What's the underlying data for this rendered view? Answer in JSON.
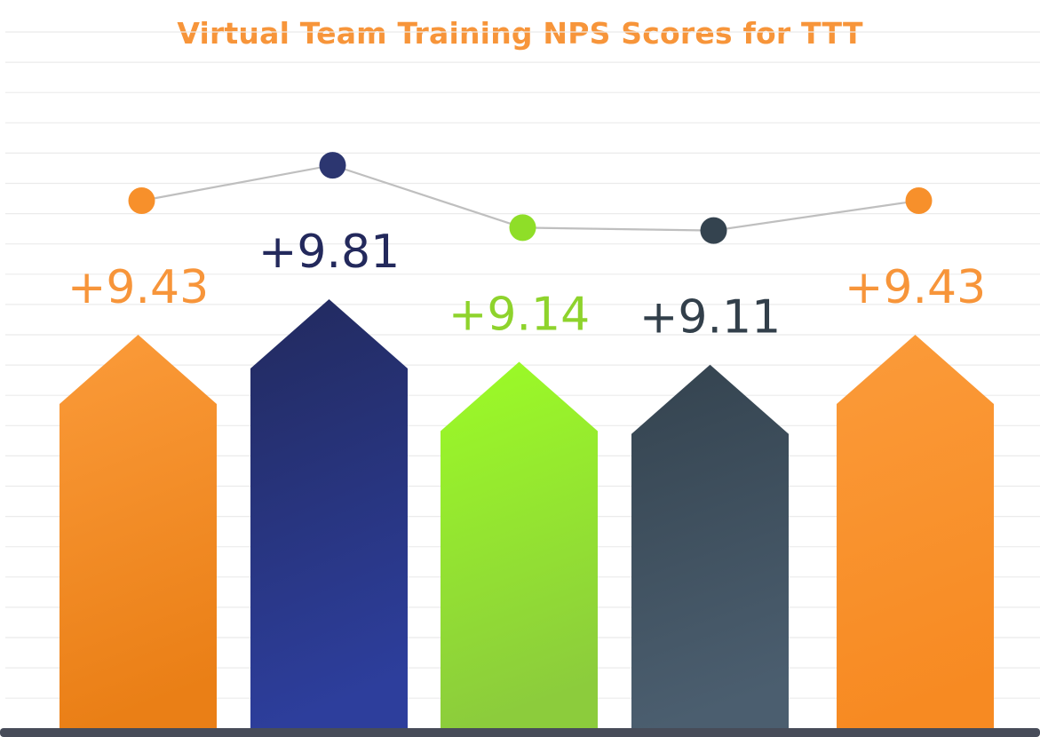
{
  "chart_data": {
    "type": "bar",
    "title": "Virtual Team Training NPS Scores for TTT",
    "categories": [
      "",
      "",
      "",
      "",
      ""
    ],
    "values": [
      9.43,
      9.81,
      9.14,
      9.11,
      9.43
    ],
    "value_labels": [
      "+9.43",
      "+9.81",
      "+9.14",
      "+9.11",
      "+9.43"
    ],
    "marker_line": true,
    "gridlines": true,
    "legend": "none",
    "xlabel": "",
    "ylabel": ""
  },
  "colors": {
    "bars": [
      {
        "top": "#fb9b3a",
        "bottom": "#ea7f16",
        "label": "#f7953a",
        "dot": "#f7902b"
      },
      {
        "top": "#222a5e",
        "bottom": "#2d3e9c",
        "label": "#23295c",
        "dot": "#2c3670"
      },
      {
        "top": "#9cfc26",
        "bottom": "#8ccc3c",
        "label": "#8ed32c",
        "dot": "#8fde28"
      },
      {
        "top": "#34434f",
        "bottom": "#4b5e6f",
        "label": "#323f4a",
        "dot": "#34434f"
      },
      {
        "top": "#fb9b3a",
        "bottom": "#f78a22",
        "label": "#f7953a",
        "dot": "#f7902b"
      }
    ],
    "grid": "#ebebeb",
    "baseline": "#474c59",
    "marker_line": "#bfbfbf"
  }
}
